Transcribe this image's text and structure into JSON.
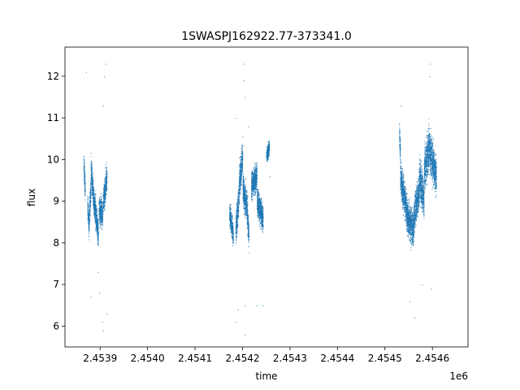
{
  "chart_data": {
    "type": "scatter",
    "title": "1SWASPJ162922.77-373341.0",
    "xlabel": "time",
    "ylabel": "flux",
    "x_offset_label": "1e6",
    "xlim": [
      2453826,
      2454675
    ],
    "ylim": [
      5.5,
      12.7
    ],
    "xticks": [
      2453900,
      2454000,
      2454100,
      2454200,
      2454300,
      2454400,
      2454500,
      2454600
    ],
    "xtick_labels": [
      "2.4539",
      "2.4540",
      "2.4541",
      "2.4542",
      "2.4543",
      "2.4544",
      "2.4545",
      "2.4546"
    ],
    "yticks": [
      6,
      7,
      8,
      9,
      10,
      11,
      12
    ],
    "ytick_labels": [
      "6",
      "7",
      "8",
      "9",
      "10",
      "11",
      "12"
    ],
    "grid": false,
    "marker_color": "#1f77b4",
    "segments": [
      {
        "t0": 2453865,
        "t1": 2453868,
        "flux": [
          9.9,
          9.3
        ],
        "spread": 0.3
      },
      {
        "t0": 2453873,
        "t1": 2453876,
        "flux": [
          8.9,
          8.4
        ],
        "spread": 0.3
      },
      {
        "t0": 2453876,
        "t1": 2453880,
        "flux": [
          8.5,
          9.3
        ],
        "spread": 0.35
      },
      {
        "t0": 2453880,
        "t1": 2453888,
        "flux": [
          9.8,
          8.8
        ],
        "spread": 0.35
      },
      {
        "t0": 2453888,
        "t1": 2453896,
        "flux": [
          8.9,
          8.2
        ],
        "spread": 0.35
      },
      {
        "t0": 2453897,
        "t1": 2453905,
        "flux": [
          8.8,
          8.7
        ],
        "spread": 0.35
      },
      {
        "t0": 2453906,
        "t1": 2453914,
        "flux": [
          9.0,
          9.6
        ],
        "spread": 0.35
      },
      {
        "t0": 2454172,
        "t1": 2454180,
        "flux": [
          8.7,
          8.2
        ],
        "spread": 0.3
      },
      {
        "t0": 2454185,
        "t1": 2454192,
        "flux": [
          8.3,
          9.1
        ],
        "spread": 0.4
      },
      {
        "t0": 2454192,
        "t1": 2454200,
        "flux": [
          9.4,
          10.1
        ],
        "spread": 0.45
      },
      {
        "t0": 2454200,
        "t1": 2454208,
        "flux": [
          9.3,
          8.9
        ],
        "spread": 0.4
      },
      {
        "t0": 2454208,
        "t1": 2454213,
        "flux": [
          9.0,
          8.1
        ],
        "spread": 0.4
      },
      {
        "t0": 2454218,
        "t1": 2454230,
        "flux": [
          9.4,
          9.6
        ],
        "spread": 0.35
      },
      {
        "t0": 2454230,
        "t1": 2454243,
        "flux": [
          9.0,
          8.6
        ],
        "spread": 0.35
      },
      {
        "t0": 2454250,
        "t1": 2454256,
        "flux": [
          10.1,
          10.3
        ],
        "spread": 0.2
      },
      {
        "t0": 2454530,
        "t1": 2454532,
        "flux": [
          10.6,
          10.2
        ],
        "spread": 0.3
      },
      {
        "t0": 2454532,
        "t1": 2454545,
        "flux": [
          9.6,
          8.8
        ],
        "spread": 0.45
      },
      {
        "t0": 2454545,
        "t1": 2454560,
        "flux": [
          8.7,
          8.3
        ],
        "spread": 0.45
      },
      {
        "t0": 2454560,
        "t1": 2454572,
        "flux": [
          8.6,
          9.3
        ],
        "spread": 0.45
      },
      {
        "t0": 2454572,
        "t1": 2454582,
        "flux": [
          9.6,
          9.0
        ],
        "spread": 0.5
      },
      {
        "t0": 2454582,
        "t1": 2454592,
        "flux": [
          9.7,
          10.3
        ],
        "spread": 0.55
      },
      {
        "t0": 2454592,
        "t1": 2454608,
        "flux": [
          10.3,
          9.6
        ],
        "spread": 0.5
      }
    ],
    "outliers": [
      [
        2453870,
        12.1
      ],
      [
        2453895,
        7.3
      ],
      [
        2453898,
        6.8
      ],
      [
        2453904,
        6.1
      ],
      [
        2453906,
        5.9
      ],
      [
        2453906,
        11.3
      ],
      [
        2453908,
        12.0
      ],
      [
        2453912,
        12.3
      ],
      [
        2453914,
        6.3
      ],
      [
        2453880,
        6.7
      ],
      [
        2454186,
        11.0
      ],
      [
        2454186,
        6.1
      ],
      [
        2454190,
        6.4
      ],
      [
        2454202,
        12.3
      ],
      [
        2454203,
        11.9
      ],
      [
        2454204,
        11.5
      ],
      [
        2454204,
        6.5
      ],
      [
        2454205,
        5.8
      ],
      [
        2454212,
        10.8
      ],
      [
        2454230,
        6.5
      ],
      [
        2454242,
        6.5
      ],
      [
        2454257,
        9.6
      ],
      [
        2454533,
        11.3
      ],
      [
        2454552,
        6.6
      ],
      [
        2454562,
        6.2
      ],
      [
        2454595,
        12.3
      ],
      [
        2454594,
        12.0
      ],
      [
        2454597,
        6.9
      ],
      [
        2454578,
        7.0
      ]
    ]
  }
}
